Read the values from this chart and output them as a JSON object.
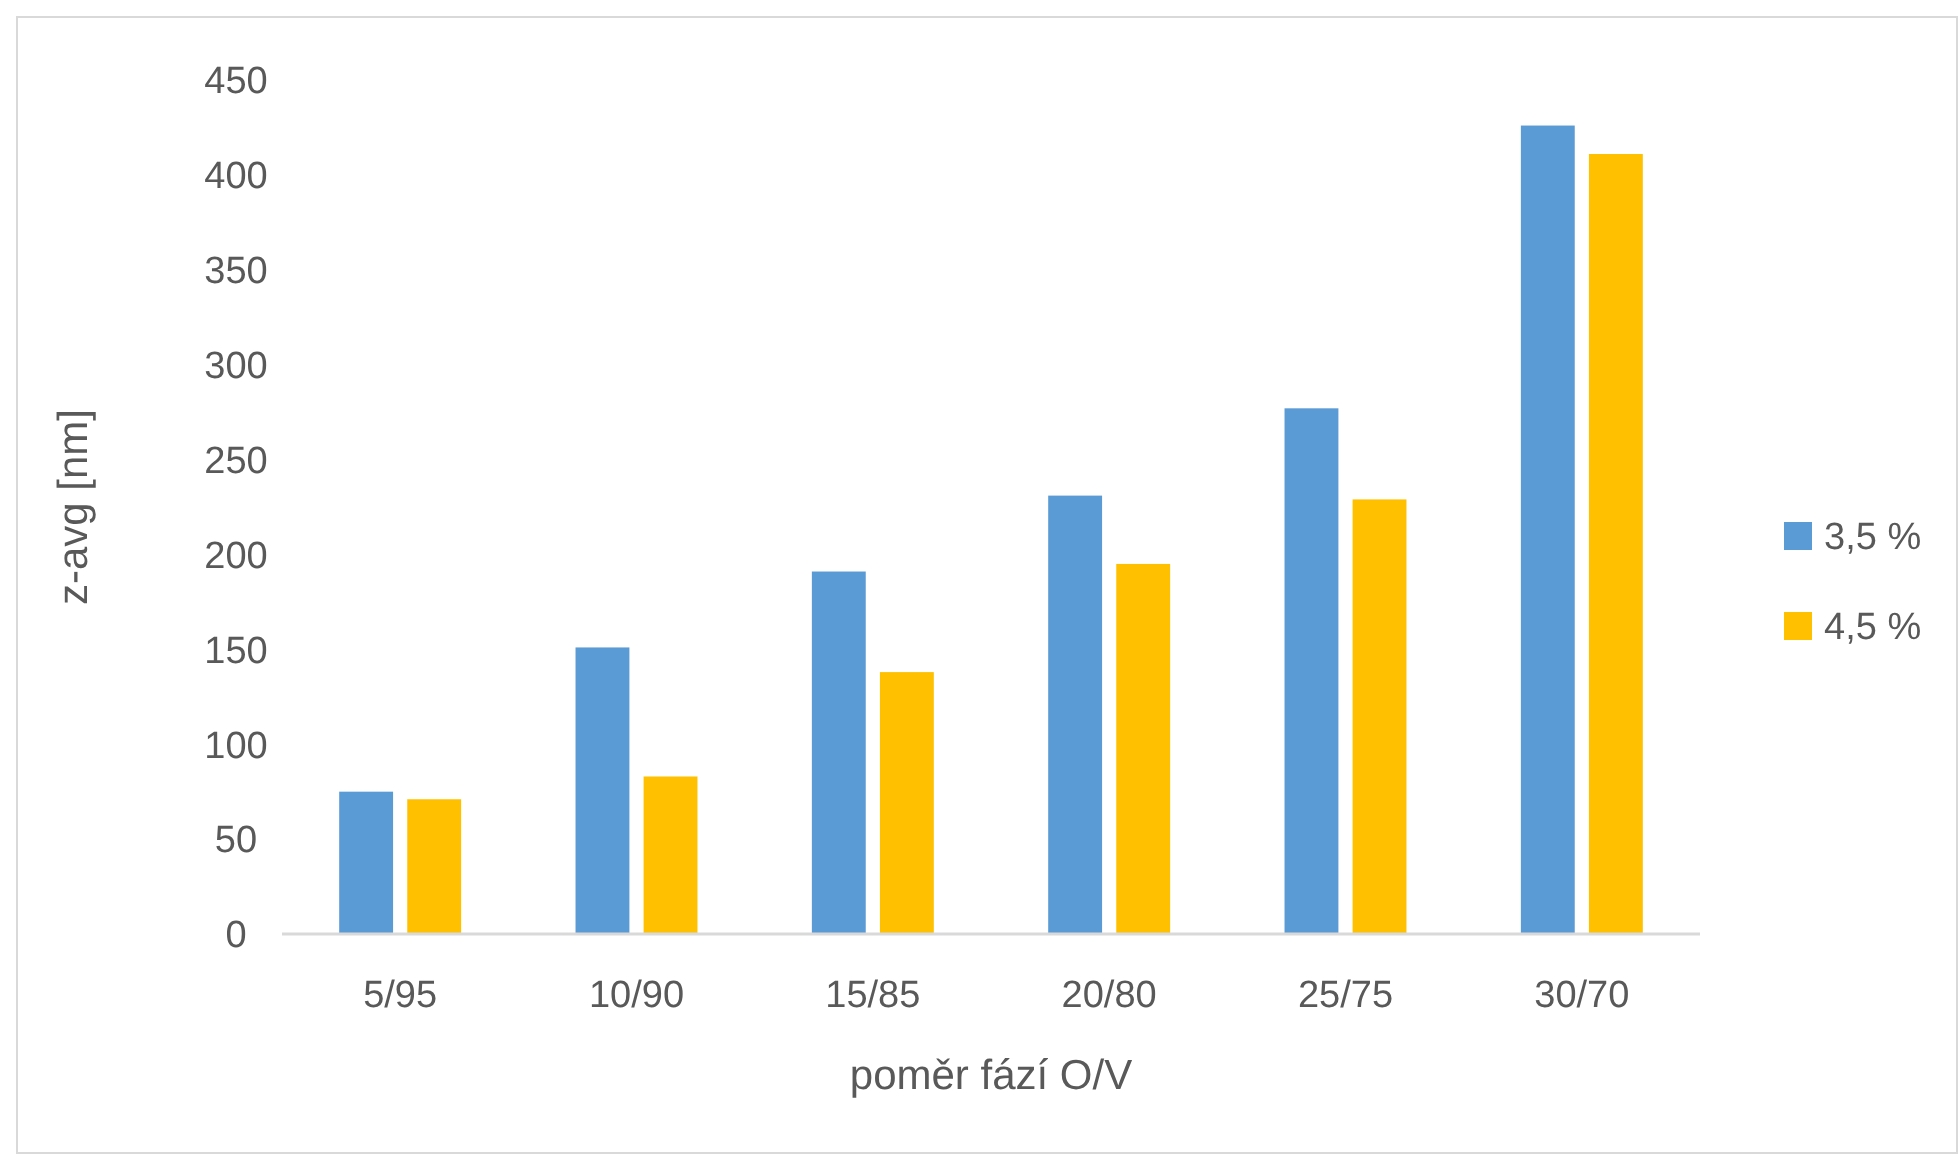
{
  "chart_data": {
    "type": "bar",
    "xlabel": "poměr fází O/V",
    "ylabel": "z-avg [nm]",
    "categories": [
      "5/95",
      "10/90",
      "15/85",
      "20/80",
      "25/75",
      "30/70"
    ],
    "series": [
      {
        "name": "3,5 %",
        "color": "#5b9bd5",
        "values": [
          75,
          151,
          191,
          231,
          277,
          426
        ]
      },
      {
        "name": "4,5 %",
        "color": "#ffc000",
        "values": [
          71,
          83,
          138,
          195,
          229,
          411
        ]
      }
    ],
    "ylim": [
      0,
      450
    ],
    "yticks": [
      0,
      50,
      100,
      150,
      200,
      250,
      300,
      350,
      400,
      450
    ],
    "grid": false,
    "legend": "right"
  }
}
